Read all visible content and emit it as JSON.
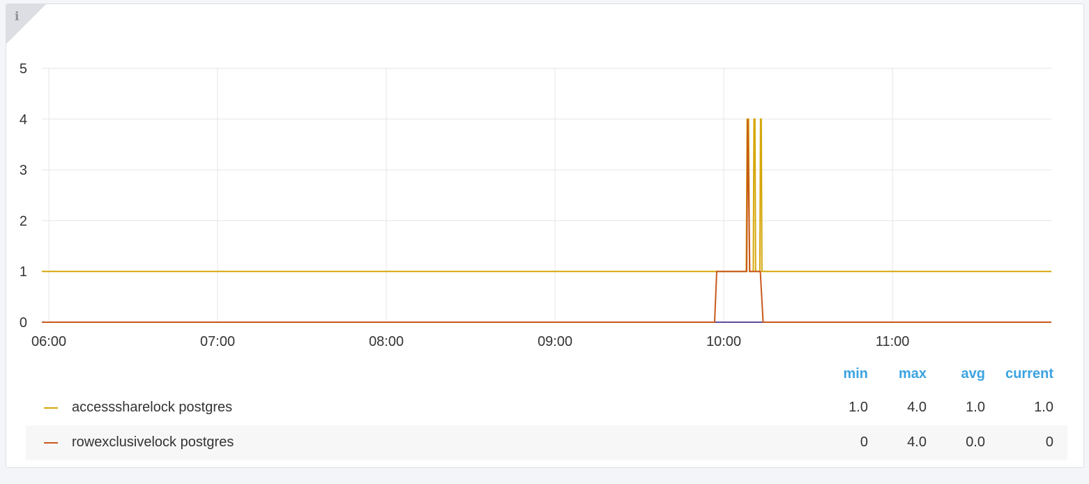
{
  "panel": {
    "info_icon": "info-icon"
  },
  "chart_data": {
    "type": "line",
    "xlim": [
      "05:57:30",
      "11:56:30"
    ],
    "ylim": [
      0,
      5
    ],
    "x_ticks": [
      "06:00",
      "07:00",
      "08:00",
      "09:00",
      "10:00",
      "11:00"
    ],
    "y_ticks": [
      "0",
      "1",
      "2",
      "3",
      "4",
      "5"
    ],
    "grid": true,
    "legend_placement": "bottom",
    "legend_columns": [
      "min",
      "max",
      "avg",
      "current"
    ],
    "series": [
      {
        "name": "accesssharelock postgres",
        "color": "#d6a70a",
        "stats": [
          "1.0",
          "4.0",
          "1.0",
          "1.0"
        ],
        "points": [
          [
            "05:57:30",
            1
          ],
          [
            "10:08:00",
            1
          ],
          [
            "10:08:20",
            4
          ],
          [
            "10:08:50",
            4
          ],
          [
            "10:09:10",
            1
          ],
          [
            "10:10:30",
            1
          ],
          [
            "10:10:45",
            4
          ],
          [
            "10:11:05",
            4
          ],
          [
            "10:11:20",
            1
          ],
          [
            "10:12:50",
            1
          ],
          [
            "10:13:05",
            4
          ],
          [
            "10:13:20",
            4
          ],
          [
            "10:13:35",
            1
          ],
          [
            "11:56:30",
            1
          ]
        ]
      },
      {
        "name": "rowexclusivelock postgres",
        "color": "#c8581a",
        "stats": [
          "0",
          "4.0",
          "0.0",
          "0"
        ],
        "points": [
          [
            "05:57:30",
            0
          ],
          [
            "09:56:45",
            0
          ],
          [
            "09:57:30",
            1
          ],
          [
            "10:08:10",
            1
          ],
          [
            "10:08:30",
            4
          ],
          [
            "10:09:15",
            1
          ],
          [
            "10:13:00",
            1
          ],
          [
            "10:14:00",
            0
          ],
          [
            "11:56:30",
            0
          ]
        ]
      }
    ],
    "baseline_color": "#5e4b9c"
  }
}
